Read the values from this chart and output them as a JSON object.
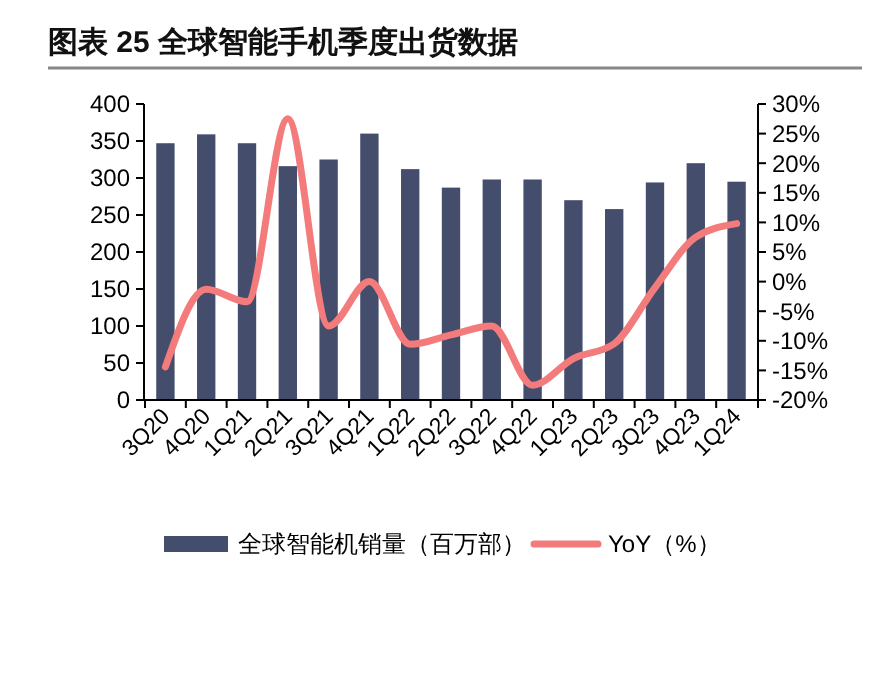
{
  "chart_data": {
    "type": "bar",
    "title": "图表 25 全球智能手机季度出货数据",
    "categories": [
      "3Q20",
      "4Q20",
      "1Q21",
      "2Q21",
      "3Q21",
      "4Q21",
      "1Q22",
      "2Q22",
      "3Q22",
      "4Q22",
      "1Q23",
      "2Q23",
      "3Q23",
      "4Q23",
      "1Q24"
    ],
    "series": [
      {
        "name": "全球智能机销量（百万部）",
        "color": "#454d6d",
        "values": [
          347,
          359,
          347,
          316,
          325,
          360,
          312,
          287,
          298,
          298,
          270,
          258,
          294,
          320,
          295
        ]
      },
      {
        "name": "YoY（%）",
        "type": "line",
        "axis": "y2",
        "color": "#f47b7b",
        "values": [
          -14.4,
          -1.3,
          -3.4,
          27.5,
          -7.5,
          0,
          -10.6,
          -9,
          -7.5,
          -17.5,
          -13,
          -10.5,
          -1,
          7.5,
          9.8
        ]
      }
    ],
    "ylim": [
      0,
      400
    ],
    "yticks": [
      0,
      50,
      100,
      150,
      200,
      250,
      300,
      350,
      400
    ],
    "y2lim": [
      -20,
      30
    ],
    "y2ticks": [
      {
        "value": -20,
        "label": "-20%"
      },
      {
        "value": -15,
        "label": "-15%"
      },
      {
        "value": -10,
        "label": "-10%"
      },
      {
        "value": -5,
        "label": "-5%"
      },
      {
        "value": 0,
        "label": "0%"
      },
      {
        "value": 5,
        "label": "5%"
      },
      {
        "value": 10,
        "label": "10%"
      },
      {
        "value": 15,
        "label": "15%"
      },
      {
        "value": 20,
        "label": "20%"
      },
      {
        "value": 25,
        "label": "25%"
      },
      {
        "value": 30,
        "label": "30%"
      }
    ],
    "legend": "bottom",
    "grid": false
  }
}
